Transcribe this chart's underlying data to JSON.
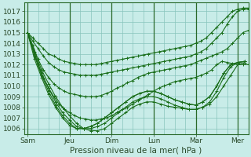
{
  "bg_color": "#c8ece8",
  "grid_color": "#88c4bc",
  "line_color": "#1a6e1a",
  "marker_color": "#1a6e1a",
  "xlabel": "Pression niveau de la mer( hPa )",
  "ylim": [
    1005.5,
    1017.8
  ],
  "yticks": [
    1006,
    1007,
    1008,
    1009,
    1010,
    1011,
    1012,
    1013,
    1014,
    1015,
    1016,
    1017
  ],
  "xtick_labels": [
    "Sam",
    "Jeu",
    "Dim",
    "Lun",
    "Mar",
    "Mer"
  ],
  "xtick_positions": [
    0,
    24,
    48,
    72,
    96,
    120
  ],
  "xmin": -2,
  "xmax": 126,
  "vline_positions": [
    0,
    24,
    48,
    72,
    96,
    120
  ],
  "font_size_ticks": 6.5,
  "font_size_xlabel": 7.5,
  "lines": [
    {
      "x": [
        0,
        3,
        6,
        9,
        12,
        15,
        18,
        21,
        24,
        27,
        30,
        33,
        36,
        39,
        42,
        45,
        48,
        51,
        54,
        57,
        60,
        63,
        66,
        69,
        72,
        75,
        78,
        81,
        84,
        87,
        90,
        93,
        96,
        99,
        102,
        105,
        108,
        111,
        114,
        117,
        120,
        123,
        126
      ],
      "y": [
        1015,
        1014.5,
        1014,
        1013.5,
        1013,
        1012.8,
        1012.5,
        1012.3,
        1012.2,
        1012.1,
        1012,
        1012,
        1012,
        1012,
        1012.1,
        1012.2,
        1012.3,
        1012.4,
        1012.5,
        1012.6,
        1012.7,
        1012.8,
        1012.9,
        1013,
        1013.1,
        1013.2,
        1013.3,
        1013.4,
        1013.5,
        1013.6,
        1013.7,
        1013.8,
        1014,
        1014.2,
        1014.5,
        1015,
        1015.5,
        1016,
        1016.5,
        1017,
        1017.2,
        1017.3,
        1017.3
      ]
    },
    {
      "x": [
        0,
        3,
        6,
        9,
        12,
        15,
        18,
        21,
        24,
        27,
        30,
        33,
        36,
        39,
        42,
        45,
        48,
        51,
        54,
        57,
        60,
        63,
        66,
        69,
        72,
        75,
        78,
        81,
        84,
        87,
        90,
        93,
        96,
        99,
        102,
        105,
        108,
        111,
        114,
        117,
        120,
        123,
        126
      ],
      "y": [
        1015,
        1014.2,
        1013.5,
        1012.8,
        1012.2,
        1011.8,
        1011.5,
        1011.3,
        1011.2,
        1011.1,
        1011,
        1011,
        1011,
        1011,
        1011.1,
        1011.2,
        1011.3,
        1011.4,
        1011.5,
        1011.6,
        1011.7,
        1011.8,
        1011.9,
        1012,
        1012.1,
        1012.2,
        1012.3,
        1012.4,
        1012.5,
        1012.6,
        1012.7,
        1012.8,
        1013,
        1013.2,
        1013.5,
        1014,
        1014.5,
        1015,
        1015.8,
        1016.5,
        1017,
        1017.2,
        1017.2
      ]
    },
    {
      "x": [
        0,
        3,
        6,
        9,
        12,
        15,
        18,
        21,
        24,
        27,
        30,
        33,
        36,
        39,
        42,
        45,
        48,
        51,
        54,
        57,
        60,
        63,
        66,
        69,
        72,
        75,
        78,
        81,
        84,
        87,
        90,
        93,
        96,
        99,
        102,
        105,
        108,
        111,
        114,
        117,
        120,
        123,
        126
      ],
      "y": [
        1015,
        1013.8,
        1012.5,
        1011.5,
        1010.8,
        1010.2,
        1009.8,
        1009.5,
        1009.3,
        1009.2,
        1009.1,
        1009,
        1009,
        1009,
        1009.1,
        1009.3,
        1009.5,
        1009.8,
        1010,
        1010.3,
        1010.5,
        1010.8,
        1011,
        1011.2,
        1011.3,
        1011.4,
        1011.5,
        1011.6,
        1011.7,
        1011.8,
        1011.9,
        1012,
        1012.2,
        1012.4,
        1012.6,
        1012.8,
        1013,
        1013.2,
        1013.5,
        1014,
        1014.5,
        1015,
        1015.2
      ]
    },
    {
      "x": [
        0,
        3,
        6,
        9,
        12,
        15,
        18,
        21,
        24,
        27,
        30,
        33,
        36,
        39,
        42,
        45,
        48,
        51,
        54,
        57,
        60,
        63,
        66,
        69,
        72,
        75,
        78,
        81,
        84,
        87,
        90,
        93,
        96,
        99,
        102,
        105,
        108,
        111,
        114,
        117,
        120,
        123,
        126
      ],
      "y": [
        1015,
        1013.5,
        1012,
        1010.8,
        1009.8,
        1009,
        1008.3,
        1007.8,
        1007.5,
        1007.2,
        1007,
        1006.9,
        1006.8,
        1006.8,
        1006.9,
        1007,
        1007.2,
        1007.5,
        1007.8,
        1008,
        1008.3,
        1008.6,
        1008.9,
        1009.2,
        1009.5,
        1009.8,
        1010,
        1010.2,
        1010.4,
        1010.5,
        1010.6,
        1010.7,
        1010.8,
        1011,
        1011.2,
        1011.5,
        1012,
        1012.3,
        1012.2,
        1012.1,
        1012,
        1012,
        1012
      ]
    },
    {
      "x": [
        0,
        4,
        8,
        12,
        16,
        20,
        24,
        28,
        32,
        36,
        40,
        44,
        48,
        52,
        56,
        60,
        64,
        68,
        72,
        76,
        80,
        84,
        88,
        92,
        96,
        100,
        104,
        108,
        112,
        116,
        120,
        124
      ],
      "y": [
        1015,
        1013.2,
        1011.5,
        1010.2,
        1009,
        1008,
        1007.2,
        1006.5,
        1006,
        1005.8,
        1005.8,
        1006,
        1006.5,
        1007,
        1007.5,
        1008,
        1008.3,
        1008.5,
        1008.5,
        1008.3,
        1008.1,
        1008,
        1007.9,
        1007.8,
        1007.8,
        1008,
        1008.3,
        1009,
        1010,
        1011,
        1012,
        1012.2
      ]
    },
    {
      "x": [
        0,
        4,
        8,
        12,
        16,
        20,
        24,
        28,
        32,
        36,
        40,
        44,
        48,
        52,
        56,
        60,
        64,
        68,
        72,
        76,
        80,
        84,
        88,
        92,
        96,
        100,
        104,
        108,
        112,
        116,
        120,
        124
      ],
      "y": [
        1015,
        1013,
        1011.2,
        1009.8,
        1008.5,
        1007.5,
        1006.8,
        1006.2,
        1006,
        1006,
        1006.2,
        1006.5,
        1007,
        1007.5,
        1008,
        1008.5,
        1008.8,
        1009,
        1009,
        1008.8,
        1008.5,
        1008.2,
        1008,
        1007.8,
        1007.8,
        1008,
        1008.5,
        1009.5,
        1010.8,
        1011.8,
        1012.2,
        1012.3
      ]
    },
    {
      "x": [
        0,
        4,
        8,
        12,
        16,
        20,
        24,
        28,
        32,
        36,
        40,
        44,
        48,
        52,
        56,
        60,
        64,
        68,
        72,
        76,
        80,
        84,
        88,
        92,
        96,
        100,
        104,
        108,
        112,
        116,
        120,
        124
      ],
      "y": [
        1015,
        1012.8,
        1011,
        1009.5,
        1008.2,
        1007.2,
        1006.5,
        1006,
        1006,
        1006.2,
        1006.5,
        1007,
        1007.5,
        1008,
        1008.5,
        1009,
        1009.3,
        1009.5,
        1009.5,
        1009.3,
        1009,
        1008.7,
        1008.5,
        1008.3,
        1008.2,
        1008.5,
        1009,
        1010,
        1011.2,
        1012,
        1012.2,
        1012.3
      ]
    },
    {
      "x": [
        0,
        4,
        8,
        12,
        16,
        20,
        24,
        28,
        32,
        36,
        40,
        44,
        48,
        52,
        56,
        60,
        64,
        68,
        72,
        76,
        80,
        84,
        88,
        92,
        96,
        100,
        104,
        108,
        112,
        116,
        120,
        124
      ],
      "y": [
        1015,
        1012.5,
        1010.8,
        1009.2,
        1008,
        1007,
        1006.3,
        1006,
        1006,
        1006.2,
        1006.5,
        1007,
        1007.5,
        1008,
        1008.5,
        1009,
        1009.3,
        1009.5,
        1009.5,
        1009.3,
        1009,
        1008.7,
        1008.5,
        1008.3,
        1008.2,
        1008.5,
        1009,
        1010,
        1011.2,
        1012,
        1012.2,
        1012.3
      ]
    }
  ]
}
